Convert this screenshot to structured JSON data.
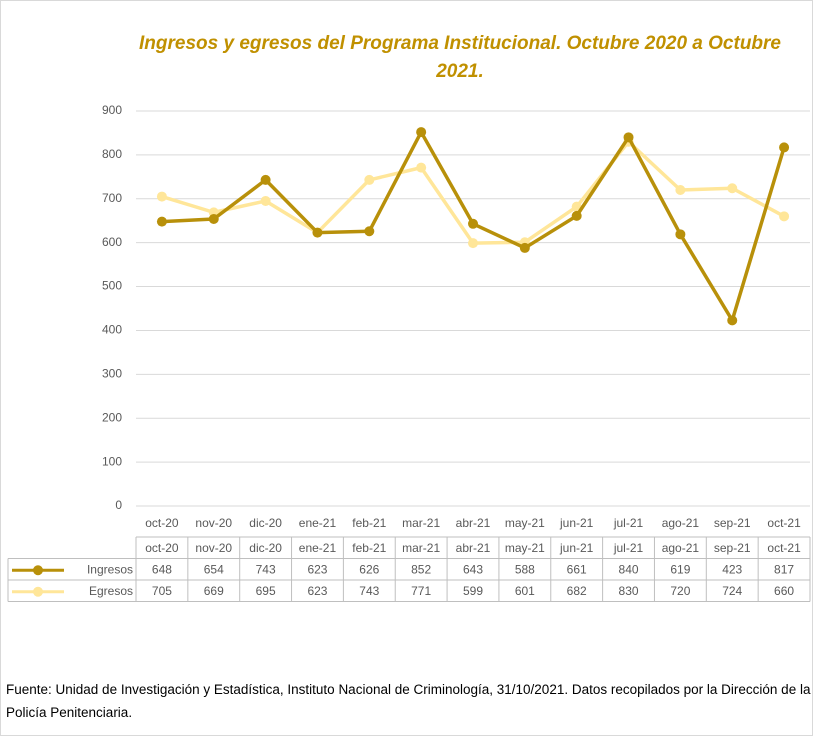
{
  "chart_data": {
    "type": "line",
    "title": "Ingresos y egresos del Programa Institucional.  Octubre 2020 a Octubre 2021.",
    "categories": [
      "oct-20",
      "nov-20",
      "dic-20",
      "ene-21",
      "feb-21",
      "mar-21",
      "abr-21",
      "may-21",
      "jun-21",
      "jul-21",
      "ago-21",
      "sep-21",
      "oct-21"
    ],
    "series": [
      {
        "name": "Ingresos",
        "color": "#b8900a",
        "values": [
          648,
          654,
          743,
          623,
          626,
          852,
          643,
          588,
          661,
          840,
          619,
          423,
          817
        ]
      },
      {
        "name": "Egresos",
        "color": "#ffe699",
        "values": [
          705,
          669,
          695,
          623,
          743,
          771,
          599,
          601,
          682,
          830,
          720,
          724,
          660
        ]
      }
    ],
    "ylim": [
      0,
      900
    ],
    "yticks": [
      0,
      100,
      200,
      300,
      400,
      500,
      600,
      700,
      800,
      900
    ],
    "grid": true,
    "source": "Fuente: Unidad de Investigación y Estadística, Instituto Nacional de Criminología, 31/10/2021. Datos recopilados por la Dirección de la Policía Penitenciaria."
  }
}
